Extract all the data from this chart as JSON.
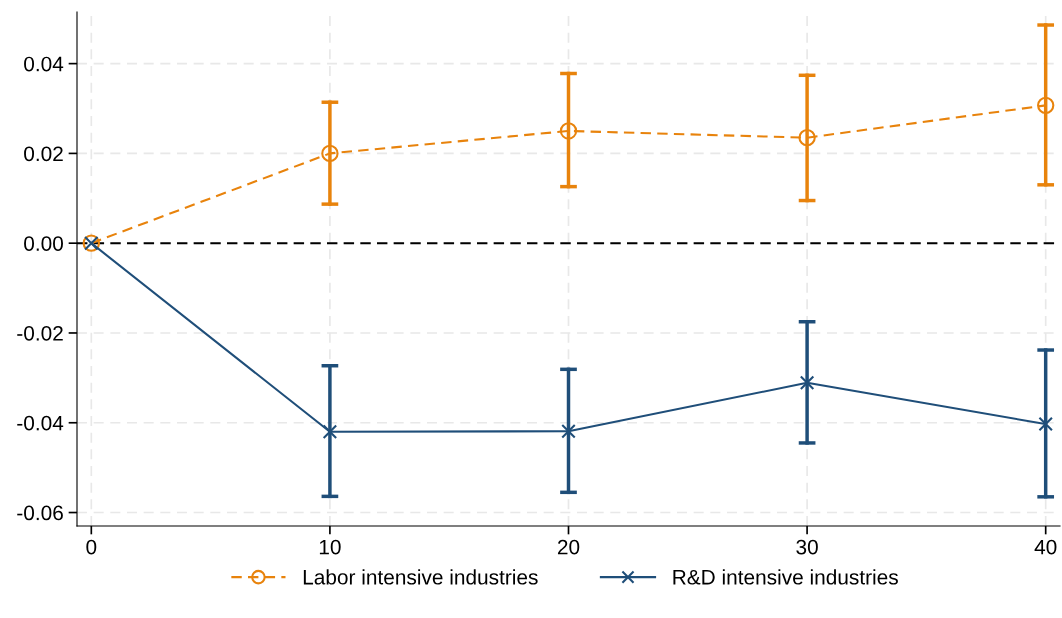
{
  "chart_data": {
    "type": "line",
    "x": [
      0,
      10,
      20,
      30,
      40
    ],
    "series": [
      {
        "name": "Labor intensive industries",
        "color": "#e8830c",
        "marker": "circle",
        "line_style": "dashed",
        "values": [
          0,
          0.02,
          0.025,
          0.0235,
          0.0307
        ],
        "errors": [
          null,
          [
            0.0087,
            0.0314
          ],
          [
            0.0126,
            0.0378
          ],
          [
            0.0095,
            0.0374
          ],
          [
            0.013,
            0.0486
          ]
        ]
      },
      {
        "name": "R&D intensive industries",
        "color": "#1f4e79",
        "marker": "cross",
        "line_style": "solid",
        "values": [
          0,
          -0.042,
          -0.0419,
          -0.0311,
          -0.0403
        ],
        "errors": [
          null,
          [
            -0.0564,
            -0.0273
          ],
          [
            -0.0555,
            -0.0281
          ],
          [
            -0.0445,
            -0.0175
          ],
          [
            -0.0565,
            -0.0238
          ]
        ]
      }
    ],
    "xlim": [
      -0.6,
      40.6
    ],
    "xticks": [
      0,
      10,
      20,
      30,
      40
    ],
    "ylim": [
      -0.063,
      0.0515
    ],
    "yticks": [
      {
        "value": -0.06,
        "label": "-0.06"
      },
      {
        "value": -0.04,
        "label": "-0.04"
      },
      {
        "value": -0.02,
        "label": "-0.02"
      },
      {
        "value": 0,
        "label": "0.00"
      },
      {
        "value": 0.02,
        "label": "0.02"
      },
      {
        "value": 0.04,
        "label": "0.04"
      }
    ],
    "ref_lines": [
      {
        "axis": "y",
        "value": 0,
        "color": "#000000",
        "line_style": "dashed"
      }
    ],
    "grid": true,
    "legend": "bottom"
  }
}
